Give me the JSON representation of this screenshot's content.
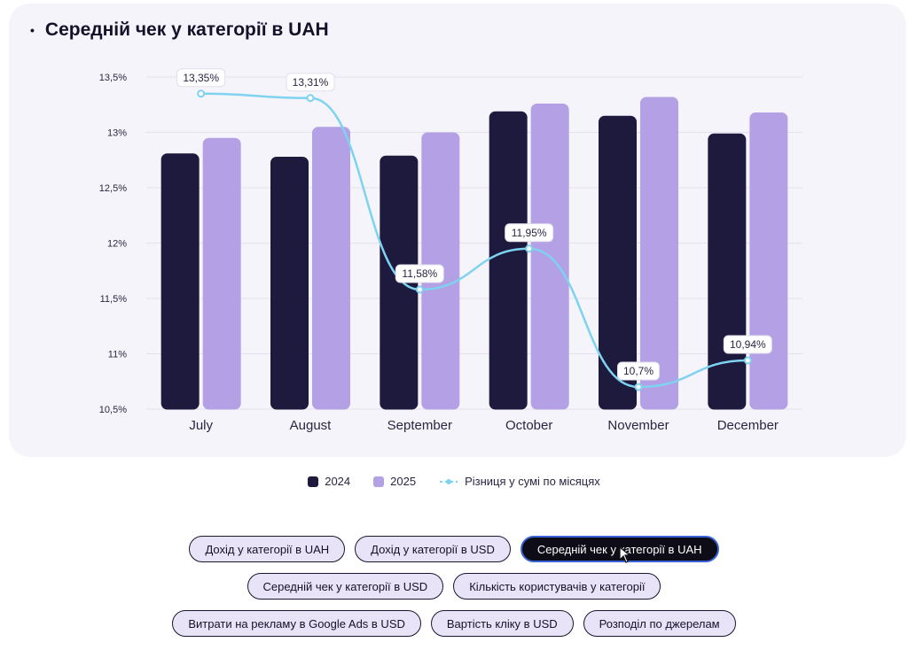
{
  "title": "Середній чек у категорії в UAH",
  "bullet": "•",
  "chart_data": {
    "type": "bar",
    "title": "Середній чек у категорії в UAH",
    "categories": [
      "July",
      "August",
      "September",
      "October",
      "November",
      "December"
    ],
    "series": [
      {
        "name": "2024",
        "values": [
          12.81,
          12.78,
          12.79,
          13.19,
          13.15,
          12.99
        ],
        "color": "#1e1a3d"
      },
      {
        "name": "2025",
        "values": [
          12.95,
          13.05,
          13.0,
          13.26,
          13.32,
          13.18
        ],
        "color": "#b4a0e4"
      }
    ],
    "line": {
      "name": "Різниця у сумі по місяцях",
      "values": [
        13.35,
        13.31,
        11.58,
        11.95,
        10.7,
        10.94
      ],
      "labels": [
        "13,35%",
        "13,31%",
        "11,58%",
        "11,95%",
        "10,7%",
        "10,94%"
      ],
      "color": "#7dd3f0"
    },
    "ylim": [
      10.5,
      13.5
    ],
    "yticks": [
      13.5,
      13,
      12.5,
      12,
      11.5,
      11,
      10.5
    ],
    "ytick_labels": [
      "13,5%",
      "13%",
      "12,5%",
      "12%",
      "11,5%",
      "11%",
      "10,5%"
    ],
    "grid": true,
    "legend_position": "bottom-center"
  },
  "legend": [
    {
      "label": "2024",
      "color": "#1e1a3d"
    },
    {
      "label": "2025",
      "color": "#b4a0e4"
    },
    {
      "label": "Різниця у сумі по місяцях",
      "color": "#7dd3f0"
    }
  ],
  "buttons": {
    "row1": [
      "Дохід у категорії в UAH",
      "Дохід у категорії в USD",
      "Середній чек у категорії в UAH"
    ],
    "row2": [
      "Середній чек у категорії в USD",
      "Кількість користувачів у категорії"
    ],
    "row3": [
      "Витрати на рекламу в Google Ads в USD",
      "Вартість кліку в USD",
      "Розподіл по джерелам"
    ],
    "active": "Середній чек у категорії в UAH"
  }
}
